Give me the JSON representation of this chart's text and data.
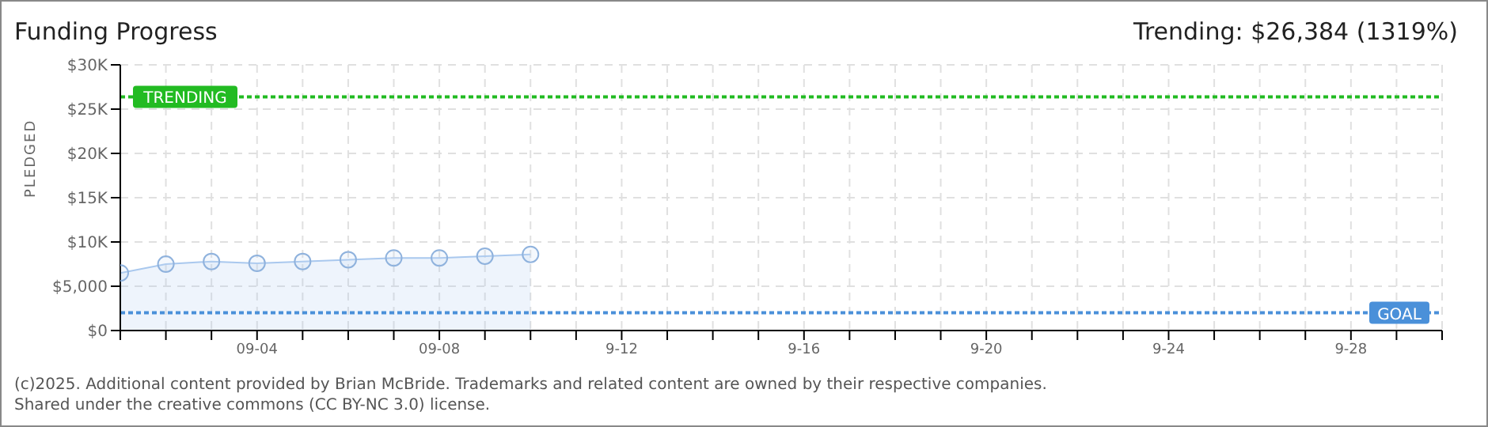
{
  "chart_data": {
    "type": "area",
    "title": "Funding Progress",
    "subtitle": "Trending: $26,384 (1319%)",
    "ylabel": "PLEDGED",
    "x": [
      "--09-01",
      "--09-02",
      "--09-03",
      "--09-04",
      "--09-05",
      "--09-06",
      "--09-07",
      "--09-08",
      "--09-09",
      "--09-10"
    ],
    "series": [
      {
        "color": "#a9c8ee",
        "values": [
          6500,
          7500,
          7800,
          7600,
          7800,
          8000,
          8200,
          8200,
          8400,
          8600
        ]
      }
    ],
    "xlim": [
      "--09-01",
      "--09-30"
    ],
    "xticks": [
      {
        "value": "--09-01",
        "label": null
      },
      {
        "value": "--09-02",
        "label": null
      },
      {
        "value": "--09-03",
        "label": null
      },
      {
        "value": "--09-04",
        "label": "09-04"
      },
      {
        "value": "--09-05",
        "label": null
      },
      {
        "value": "--09-06",
        "label": null
      },
      {
        "value": "--09-07",
        "label": null
      },
      {
        "value": "--09-08",
        "label": "09-08"
      },
      {
        "value": "--09-09",
        "label": null
      },
      {
        "value": "--09-10",
        "label": null
      },
      {
        "value": "--09-11",
        "label": null
      },
      {
        "value": "--09-12",
        "label": "9-12"
      },
      {
        "value": "--09-13",
        "label": null
      },
      {
        "value": "--09-14",
        "label": null
      },
      {
        "value": "--09-15",
        "label": null
      },
      {
        "value": "--09-16",
        "label": "9-16"
      },
      {
        "value": "--09-17",
        "label": null
      },
      {
        "value": "--09-18",
        "label": null
      },
      {
        "value": "--09-19",
        "label": null
      },
      {
        "value": "--09-20",
        "label": "9-20"
      },
      {
        "value": "--09-21",
        "label": null
      },
      {
        "value": "--09-22",
        "label": null
      },
      {
        "value": "--09-23",
        "label": null
      },
      {
        "value": "--09-24",
        "label": "9-24"
      },
      {
        "value": "--09-25",
        "label": null
      },
      {
        "value": "--09-26",
        "label": null
      },
      {
        "value": "--09-27",
        "label": null
      },
      {
        "value": "--09-28",
        "label": "9-28"
      },
      {
        "value": "--09-29",
        "label": null
      },
      {
        "value": "--09-30",
        "label": null
      }
    ],
    "ylim": [
      0,
      30000
    ],
    "yticks": [
      {
        "value": 0,
        "label": "$0"
      },
      {
        "value": 5000,
        "label": "$5,000"
      },
      {
        "value": 10000,
        "label": "$10K"
      },
      {
        "value": 15000,
        "label": "$15K"
      },
      {
        "value": 20000,
        "label": "$20K"
      },
      {
        "value": 25000,
        "label": "$25K"
      },
      {
        "value": 30000,
        "label": "$30K"
      }
    ],
    "ref_lines": [
      {
        "axis": "y",
        "value": 26384,
        "label": "TRENDING",
        "color": "#22bb22",
        "line_style": "dotted"
      },
      {
        "axis": "y",
        "value": 2000,
        "label": "GOAL",
        "color": "#4a90d9",
        "line_style": "dotted"
      }
    ],
    "grid": true,
    "marker": "circle",
    "legend": false,
    "annotations": [
      "(c)2025. Additional content provided by Brian McBride. Trademarks and related content are owned by their respective companies.",
      "Shared under the creative commons (CC BY-NC 3.0) license."
    ]
  }
}
